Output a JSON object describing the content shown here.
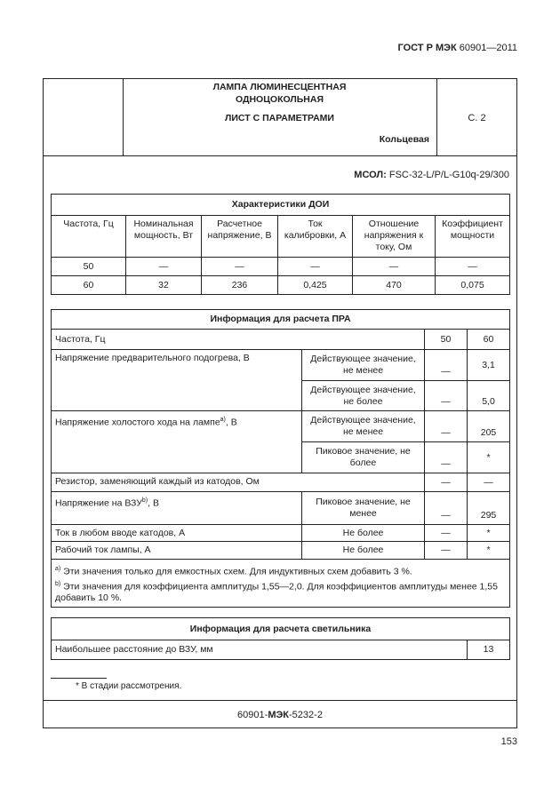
{
  "header": {
    "standard_bold": "ГОСТ Р МЭК",
    "standard_number": "60901—2011"
  },
  "title_block": {
    "title_line1": "ЛАМПА ЛЮМИНЕСЦЕНТНАЯ",
    "title_line2": "ОДНОЦОКОЛЬНАЯ",
    "sheet": "ЛИСТ С ПАРАМЕТРАМИ",
    "page": "С. 2",
    "shape": "Кольцевая"
  },
  "designation": {
    "label": "МСОЛ:",
    "value": "FSC-32-L/P/L-G10q-29/300"
  },
  "lamp_table": {
    "title": "Характеристики ДОИ",
    "headers": [
      "Частота, Гц",
      "Номинальная мощность, Вт",
      "Расчетное напряжение, В",
      "Ток калибровки, А",
      "Отношение напряжения к току, Ом",
      "Коэффициент мощности"
    ],
    "rows": [
      [
        "50",
        "—",
        "—",
        "—",
        "—",
        "—"
      ],
      [
        "60",
        "32",
        "236",
        "0,425",
        "470",
        "0,075"
      ]
    ]
  },
  "ballast_table": {
    "title": "Информация для расчета ПРА",
    "freq_label": "Частота, Гц",
    "freq_50": "50",
    "freq_60": "60",
    "rows": [
      {
        "param": "Напряжение предварительного подогрева, В",
        "cond": "Действующее значение, не менее",
        "v50": "—",
        "v60": "3,1"
      },
      {
        "param": "",
        "cond": "Действующее значение, не более",
        "v50": "—",
        "v60": "5,0"
      },
      {
        "param": "Напряжение холостого хода на лампе",
        "sup": "а)",
        "unit": ", В",
        "cond": "Действующее значение, не менее",
        "v50": "—",
        "v60": "205"
      },
      {
        "param": "",
        "cond": "Пиковое значение, не более",
        "v50": "—",
        "v60": "*"
      },
      {
        "param": "Резистор, заменяющий каждый из катодов, Ом",
        "v50": "—",
        "v60": "—"
      },
      {
        "param": "Напряжение на ВЗУ",
        "sup": "b)",
        "unit": ", В",
        "cond": "Пиковое значение, не менее",
        "v50": "—",
        "v60": "295"
      },
      {
        "param": "Ток в любом вводе катодов, А",
        "cond": "Не более",
        "v50": "—",
        "v60": "*"
      },
      {
        "param": "Рабочий ток лампы, А",
        "cond": "Не более",
        "v50": "—",
        "v60": "*"
      }
    ],
    "notes": [
      {
        "mark": "а)",
        "text": "Эти значения только для емкостных схем. Для индуктивных схем добавить 3 %."
      },
      {
        "mark": "b)",
        "text": "Эти значения для коэффициента амплитуды 1,55—2,0. Для коэффициентов амплитуды менее 1,55 добавить 10 %."
      }
    ]
  },
  "luminaire_table": {
    "title": "Информация для расчета светильника",
    "row_label": "Наибольшее расстояние до ВЗУ, мм",
    "row_value": "13"
  },
  "footnote": "* В стадии рассмотрения.",
  "footer": {
    "prefix": "60901-",
    "bold": "МЭК",
    "suffix": "-5232-2"
  },
  "page_number": "153"
}
